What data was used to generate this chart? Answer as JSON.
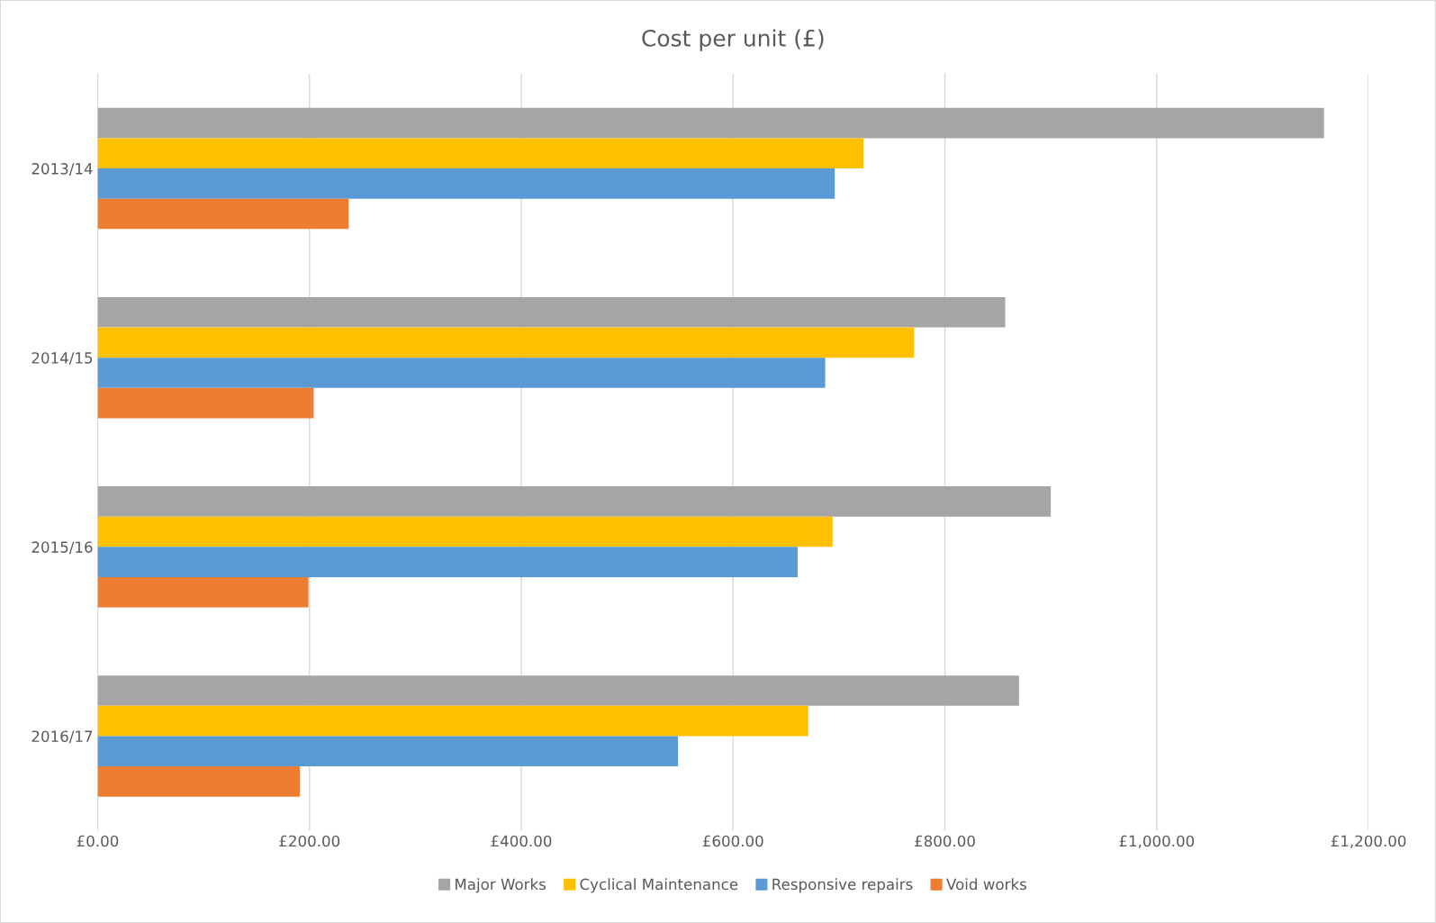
{
  "chart_data": {
    "type": "bar",
    "orientation": "horizontal",
    "title": "Cost per unit (£)",
    "categories": [
      "2013/14",
      "2014/15",
      "2015/16",
      "2016/17"
    ],
    "series": [
      {
        "name": "Major Works",
        "color": "#a5a5a5",
        "values": [
          1158,
          857,
          900,
          870
        ]
      },
      {
        "name": "Cyclical Maintenance",
        "color": "#ffc000",
        "values": [
          723,
          771,
          694,
          671
        ]
      },
      {
        "name": "Responsive repairs",
        "color": "#5b9bd5",
        "values": [
          696,
          687,
          661,
          548
        ]
      },
      {
        "name": "Void works",
        "color": "#ed7d31",
        "values": [
          237,
          204,
          199,
          191
        ]
      }
    ],
    "xlim": [
      0,
      1200
    ],
    "xticks": [
      {
        "value": 0,
        "label": "£0.00"
      },
      {
        "value": 200,
        "label": "£200.00"
      },
      {
        "value": 400,
        "label": "£400.00"
      },
      {
        "value": 600,
        "label": "£600.00"
      },
      {
        "value": 800,
        "label": "£800.00"
      },
      {
        "value": 1000,
        "label": "£1,000.00"
      },
      {
        "value": 1200,
        "label": "£1,200.00"
      }
    ],
    "grid": "x",
    "legend": "bottom"
  }
}
